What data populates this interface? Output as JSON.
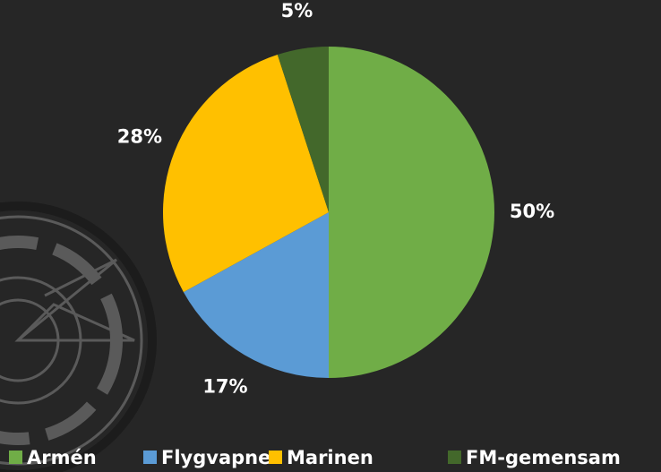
{
  "chart_data": {
    "type": "pie",
    "categories": [
      "Armén",
      "Flygvapnet",
      "Marinen",
      "FM-gemensam"
    ],
    "values": [
      50,
      17,
      28,
      5
    ],
    "value_labels": [
      "50%",
      "17%",
      "28%",
      "5%"
    ],
    "colors": [
      "#70ad47",
      "#5b9bd5",
      "#ffc000",
      "#43682b"
    ],
    "legend": "bottom"
  }
}
